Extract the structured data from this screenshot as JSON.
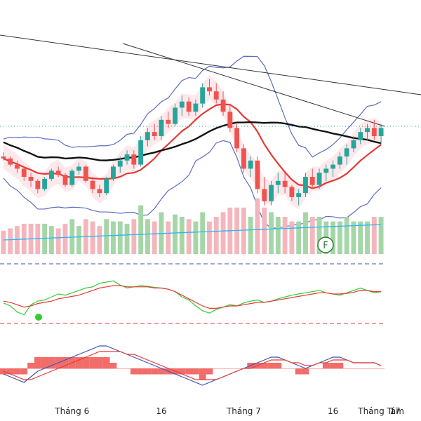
{
  "chart_data": {
    "type": "candlestick",
    "theme": {
      "background": "#ffffff",
      "up": "#26a69a",
      "down": "#ef5350",
      "volume_up": "#a5d6a7",
      "volume_down": "#f4b6bd",
      "ma_red": "#e53935",
      "ma_black": "#111111",
      "bb": "#5c6bc0",
      "cloud_up": "#c8e6c9",
      "cloud_down": "#ffcdd2",
      "rsi_fast": "#33cc33",
      "rsi_slow": "#e53935",
      "macd": "#3f51b5",
      "signal": "#e53935",
      "hist": "#ef5350",
      "volume_ma": "#29b6f6",
      "highlight": "#3f2bd6"
    },
    "x_tick_labels": [
      "Tháng 6",
      "16",
      "Tháng 7",
      "16",
      "Tháng Tám",
      "17"
    ],
    "x_tick_positions": [
      10,
      23,
      35,
      48,
      58,
      70
    ],
    "price": {
      "ylim": [
        0,
        100
      ],
      "candles": [
        [
          30,
          32,
          28,
          29
        ],
        [
          29,
          30,
          25,
          26
        ],
        [
          26,
          28,
          22,
          24
        ],
        [
          24,
          25,
          18,
          20
        ],
        [
          20,
          22,
          15,
          18
        ],
        [
          18,
          19,
          12,
          14
        ],
        [
          14,
          20,
          13,
          19
        ],
        [
          19,
          24,
          18,
          23
        ],
        [
          23,
          25,
          20,
          21
        ],
        [
          21,
          22,
          15,
          16
        ],
        [
          16,
          24,
          15,
          23
        ],
        [
          23,
          27,
          21,
          25
        ],
        [
          25,
          26,
          17,
          18
        ],
        [
          18,
          20,
          12,
          14
        ],
        [
          14,
          16,
          10,
          12
        ],
        [
          12,
          20,
          11,
          19
        ],
        [
          19,
          26,
          18,
          25
        ],
        [
          25,
          30,
          22,
          28
        ],
        [
          28,
          33,
          26,
          31
        ],
        [
          31,
          33,
          24,
          26
        ],
        [
          26,
          40,
          25,
          38
        ],
        [
          38,
          44,
          35,
          42
        ],
        [
          42,
          46,
          38,
          40
        ],
        [
          40,
          50,
          38,
          48
        ],
        [
          48,
          52,
          44,
          46
        ],
        [
          46,
          56,
          45,
          54
        ],
        [
          54,
          60,
          50,
          57
        ],
        [
          57,
          59,
          50,
          52
        ],
        [
          52,
          58,
          50,
          56
        ],
        [
          56,
          66,
          54,
          64
        ],
        [
          64,
          68,
          60,
          62
        ],
        [
          62,
          66,
          56,
          58
        ],
        [
          58,
          62,
          50,
          52
        ],
        [
          52,
          56,
          42,
          44
        ],
        [
          44,
          46,
          32,
          34
        ],
        [
          34,
          36,
          22,
          24
        ],
        [
          24,
          30,
          20,
          28
        ],
        [
          28,
          30,
          12,
          14
        ],
        [
          14,
          20,
          6,
          8
        ],
        [
          8,
          18,
          6,
          16
        ],
        [
          16,
          22,
          12,
          18
        ],
        [
          18,
          22,
          12,
          15
        ],
        [
          15,
          16,
          8,
          10
        ],
        [
          10,
          14,
          6,
          12
        ],
        [
          12,
          22,
          10,
          20
        ],
        [
          20,
          24,
          14,
          16
        ],
        [
          16,
          24,
          14,
          22
        ],
        [
          22,
          26,
          18,
          24
        ],
        [
          24,
          28,
          20,
          26
        ],
        [
          26,
          32,
          24,
          30
        ],
        [
          30,
          36,
          26,
          34
        ],
        [
          34,
          40,
          32,
          38
        ],
        [
          38,
          44,
          36,
          42
        ],
        [
          42,
          46,
          38,
          44
        ],
        [
          44,
          48,
          38,
          40
        ],
        [
          40,
          46,
          36,
          44
        ]
      ]
    },
    "rsi": {
      "ylim": [
        0,
        100
      ],
      "upper": 70,
      "lower": 30,
      "fast": [
        45,
        40,
        30,
        25,
        42,
        48,
        50,
        55,
        60,
        58,
        62,
        66,
        70,
        72,
        78,
        80,
        82,
        75,
        70,
        72,
        74,
        73,
        71,
        70,
        68,
        64,
        55,
        50,
        40,
        32,
        28,
        34,
        38,
        42,
        40,
        45,
        48,
        50,
        46,
        48,
        52,
        55,
        58,
        60,
        62,
        64,
        66,
        62,
        60,
        58,
        62,
        66,
        70,
        66,
        62,
        64
      ],
      "slow": [
        48,
        46,
        42,
        38,
        40,
        44,
        46,
        48,
        52,
        54,
        56,
        58,
        62,
        66,
        70,
        72,
        74,
        74,
        72,
        72,
        72,
        72,
        70,
        70,
        68,
        64,
        58,
        52,
        46,
        40,
        36,
        36,
        38,
        40,
        40,
        42,
        44,
        46,
        46,
        48,
        50,
        52,
        54,
        56,
        58,
        60,
        62,
        62,
        60,
        60,
        61,
        63,
        66,
        66,
        64,
        64
      ]
    },
    "macd": {
      "ylim": [
        -10,
        10
      ],
      "macd": [
        -2,
        -3,
        -4,
        -5,
        -3,
        -1,
        0,
        1,
        2,
        3,
        4,
        5,
        6,
        7,
        8,
        8,
        7,
        6,
        5,
        4,
        3,
        2,
        1,
        0,
        -1,
        -2,
        -3,
        -4,
        -5,
        -6,
        -5,
        -4,
        -3,
        -2,
        -1,
        0,
        1,
        2,
        3,
        4,
        4,
        3,
        2,
        1,
        0,
        1,
        2,
        3,
        4,
        4,
        3,
        2,
        2,
        2,
        2,
        1
      ],
      "signal": [
        -1,
        -2,
        -3,
        -4,
        -4,
        -3,
        -2,
        -1,
        0,
        1,
        2,
        3,
        4,
        5,
        6,
        6,
        6,
        6,
        5,
        5,
        4,
        3,
        2,
        1,
        0,
        -1,
        -2,
        -3,
        -4,
        -4,
        -4,
        -4,
        -3,
        -2,
        -1,
        0,
        0,
        1,
        2,
        3,
        3,
        3,
        2,
        2,
        1,
        1,
        2,
        2,
        3,
        3,
        3,
        2,
        2,
        2,
        2,
        1
      ]
    }
  }
}
